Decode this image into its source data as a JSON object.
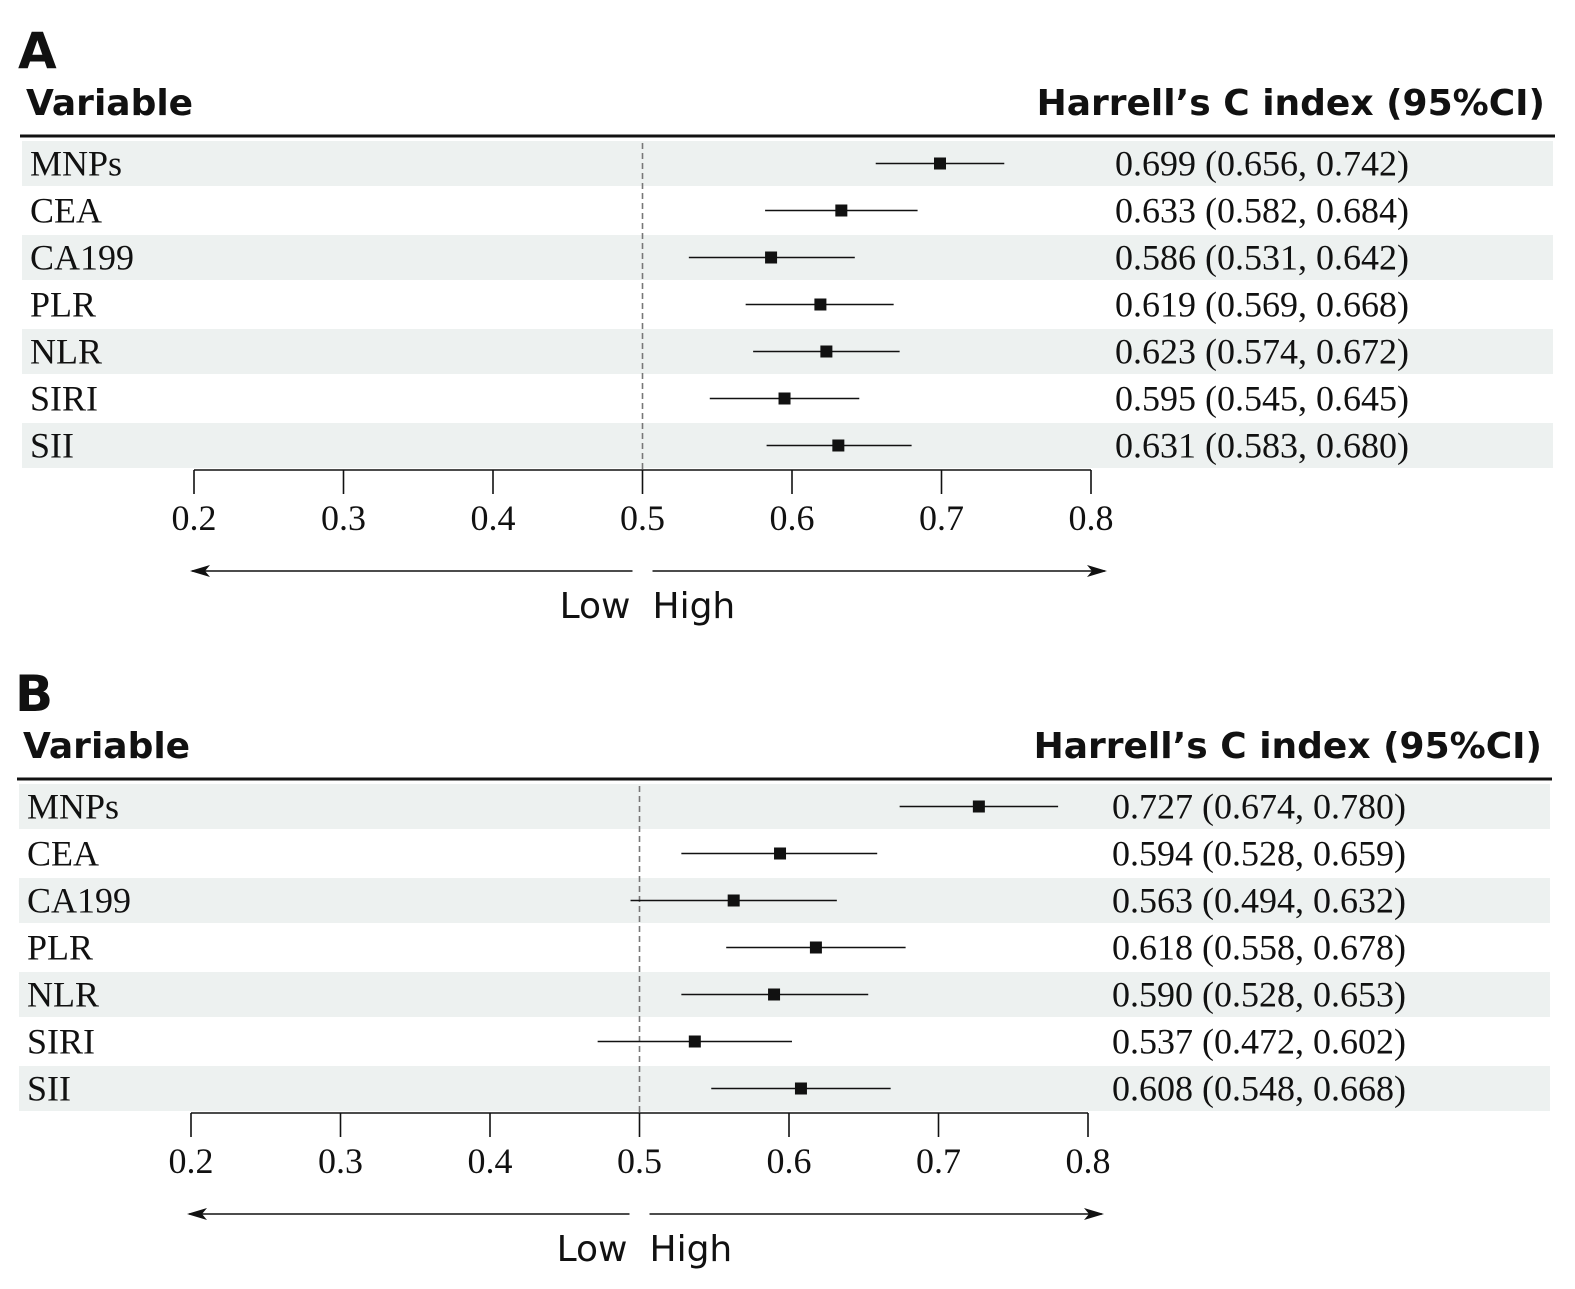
{
  "chart_data": [
    {
      "type": "forest",
      "panel": "A",
      "column_headers": {
        "left": "Variable",
        "right": "Harrell’s C index (95%CI)"
      },
      "x_ticks": [
        "0.2",
        "0.3",
        "0.4",
        "0.5",
        "0.6",
        "0.7",
        "0.8"
      ],
      "xlim": [
        0.2,
        0.8
      ],
      "reference_line": 0.5,
      "direction_labels": {
        "low": "Low",
        "high": "High"
      },
      "rows": [
        {
          "variable": "MNPs",
          "estimate": 0.699,
          "lower": 0.656,
          "upper": 0.742,
          "ci_text": "0.699 (0.656, 0.742)"
        },
        {
          "variable": "CEA",
          "estimate": 0.633,
          "lower": 0.582,
          "upper": 0.684,
          "ci_text": "0.633 (0.582, 0.684)"
        },
        {
          "variable": "CA199",
          "estimate": 0.586,
          "lower": 0.531,
          "upper": 0.642,
          "ci_text": "0.586 (0.531, 0.642)"
        },
        {
          "variable": "PLR",
          "estimate": 0.619,
          "lower": 0.569,
          "upper": 0.668,
          "ci_text": "0.619 (0.569, 0.668)"
        },
        {
          "variable": "NLR",
          "estimate": 0.623,
          "lower": 0.574,
          "upper": 0.672,
          "ci_text": "0.623 (0.574, 0.672)"
        },
        {
          "variable": "SIRI",
          "estimate": 0.595,
          "lower": 0.545,
          "upper": 0.645,
          "ci_text": "0.595 (0.545, 0.645)"
        },
        {
          "variable": "SII",
          "estimate": 0.631,
          "lower": 0.583,
          "upper": 0.68,
          "ci_text": "0.631 (0.583, 0.680)"
        }
      ]
    },
    {
      "type": "forest",
      "panel": "B",
      "column_headers": {
        "left": "Variable",
        "right": "Harrell’s C index (95%CI)"
      },
      "x_ticks": [
        "0.2",
        "0.3",
        "0.4",
        "0.5",
        "0.6",
        "0.7",
        "0.8"
      ],
      "xlim": [
        0.2,
        0.8
      ],
      "reference_line": 0.5,
      "direction_labels": {
        "low": "Low",
        "high": "High"
      },
      "rows": [
        {
          "variable": "MNPs",
          "estimate": 0.727,
          "lower": 0.674,
          "upper": 0.78,
          "ci_text": "0.727 (0.674, 0.780)"
        },
        {
          "variable": "CEA",
          "estimate": 0.594,
          "lower": 0.528,
          "upper": 0.659,
          "ci_text": "0.594 (0.528, 0.659)"
        },
        {
          "variable": "CA199",
          "estimate": 0.563,
          "lower": 0.494,
          "upper": 0.632,
          "ci_text": "0.563 (0.494, 0.632)"
        },
        {
          "variable": "PLR",
          "estimate": 0.618,
          "lower": 0.558,
          "upper": 0.678,
          "ci_text": "0.618 (0.558, 0.678)"
        },
        {
          "variable": "NLR",
          "estimate": 0.59,
          "lower": 0.528,
          "upper": 0.653,
          "ci_text": "0.590 (0.528, 0.653)"
        },
        {
          "variable": "SIRI",
          "estimate": 0.537,
          "lower": 0.472,
          "upper": 0.602,
          "ci_text": "0.537 (0.472, 0.602)"
        },
        {
          "variable": "SII",
          "estimate": 0.608,
          "lower": 0.548,
          "upper": 0.668,
          "ci_text": "0.608 (0.548, 0.668)"
        }
      ]
    }
  ],
  "colors": {
    "stripe": "#edf1f0",
    "ink": "#111111",
    "reference_line": "#777777"
  }
}
